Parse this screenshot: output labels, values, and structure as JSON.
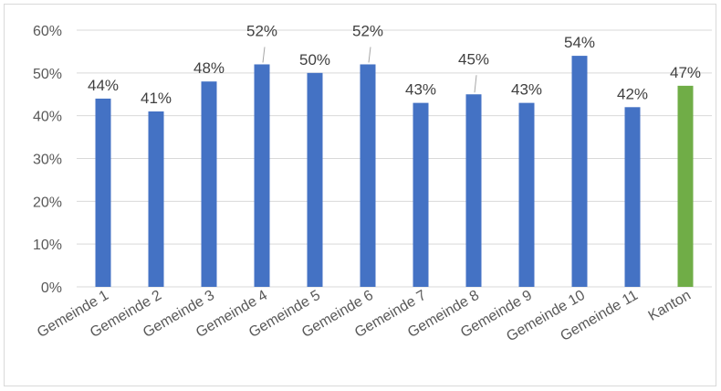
{
  "chart_data": {
    "type": "bar",
    "title": "",
    "xlabel": "",
    "ylabel": "",
    "ylim": [
      0,
      60
    ],
    "y_tick_values": [
      0,
      10,
      20,
      30,
      40,
      50,
      60
    ],
    "y_tick_labels": [
      "0%",
      "10%",
      "20%",
      "30%",
      "40%",
      "50%",
      "60%"
    ],
    "grid": true,
    "legend": "none",
    "categories": [
      "Gemeinde 1",
      "Gemeinde 2",
      "Gemeinde 3",
      "Gemeinde 4",
      "Gemeinde 5",
      "Gemeinde 6",
      "Gemeinde 7",
      "Gemeinde 8",
      "Gemeinde 9",
      "Gemeinde 10",
      "Gemeinde 11",
      "Kanton"
    ],
    "values": [
      44,
      41,
      48,
      52,
      50,
      52,
      43,
      45,
      43,
      54,
      42,
      47
    ],
    "data_labels": [
      "44%",
      "41%",
      "48%",
      "52%",
      "50%",
      "52%",
      "43%",
      "45%",
      "43%",
      "54%",
      "42%",
      "47%"
    ],
    "bar_colors": [
      "#4472c4",
      "#4472c4",
      "#4472c4",
      "#4472c4",
      "#4472c4",
      "#4472c4",
      "#4472c4",
      "#4472c4",
      "#4472c4",
      "#4472c4",
      "#4472c4",
      "#70ad47"
    ],
    "colors": {
      "series": "#4472c4",
      "highlight": "#70ad47",
      "gridline": "#d9d9d9",
      "axis_text": "#595959",
      "label_text": "#404040"
    }
  }
}
